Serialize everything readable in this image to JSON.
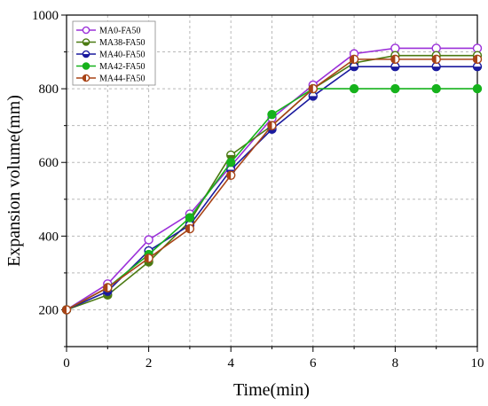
{
  "chart_data": {
    "type": "line",
    "title": "",
    "xlabel": "Time(min)",
    "ylabel": "Expansion volume(mm)",
    "xlim": [
      0,
      10
    ],
    "ylim": [
      100,
      1000
    ],
    "x_ticks": [
      0,
      2,
      4,
      6,
      8,
      10
    ],
    "y_ticks": [
      200,
      400,
      600,
      800,
      1000
    ],
    "grid": true,
    "legend_position": "top-left",
    "x": [
      0,
      1,
      2,
      3,
      4,
      5,
      6,
      7,
      8,
      9,
      10
    ],
    "series": [
      {
        "name": "MA0-FA50",
        "color": "#9b30d9",
        "marker": "open-circle",
        "values": [
          200,
          270,
          390,
          460,
          590,
          720,
          810,
          895,
          910,
          910,
          910
        ]
      },
      {
        "name": "MA38-FA50",
        "color": "#4b7a12",
        "marker": "half-circle",
        "values": [
          200,
          240,
          330,
          440,
          620,
          700,
          800,
          870,
          890,
          890,
          890
        ]
      },
      {
        "name": "MA40-FA50",
        "color": "#1a1a9e",
        "marker": "half-circle",
        "values": [
          200,
          250,
          360,
          430,
          580,
          690,
          780,
          860,
          860,
          860,
          860
        ]
      },
      {
        "name": "MA42-FA50",
        "color": "#16b21c",
        "marker": "filled-circle",
        "values": [
          200,
          260,
          350,
          450,
          600,
          730,
          800,
          800,
          800,
          800,
          800
        ]
      },
      {
        "name": "MA44-FA50",
        "color": "#a84316",
        "marker": "half-circle-vert",
        "values": [
          200,
          260,
          340,
          420,
          565,
          700,
          800,
          880,
          880,
          880,
          880
        ]
      }
    ]
  }
}
